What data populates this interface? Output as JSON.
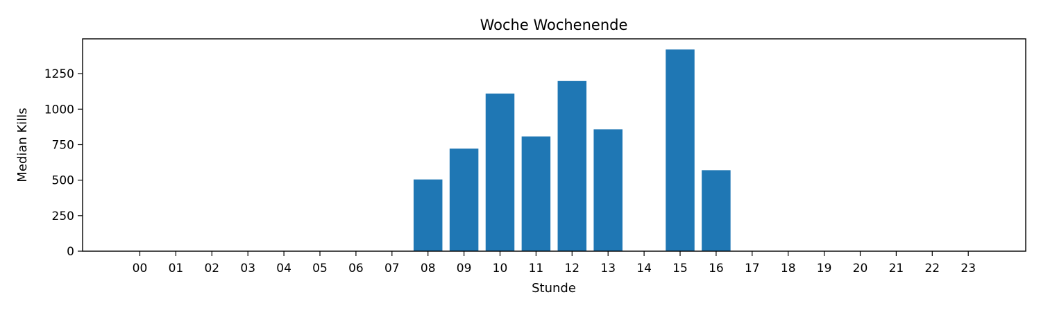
{
  "chart_data": {
    "type": "bar",
    "title": "Woche Wochenende",
    "xlabel": "Stunde",
    "ylabel": "Median Kills",
    "categories": [
      "00",
      "01",
      "02",
      "03",
      "04",
      "05",
      "06",
      "07",
      "08",
      "09",
      "10",
      "11",
      "12",
      "13",
      "14",
      "15",
      "16",
      "17",
      "18",
      "19",
      "20",
      "21",
      "22",
      "23"
    ],
    "values": [
      0,
      0,
      0,
      0,
      0,
      0,
      0,
      0,
      505,
      722,
      1110,
      808,
      1198,
      858,
      0,
      1420,
      570,
      0,
      0,
      0,
      0,
      0,
      0,
      0
    ],
    "ylim": [
      0,
      1495
    ],
    "yticks": [
      "0",
      "250",
      "500",
      "750",
      "1000",
      "1250"
    ],
    "grid": false,
    "legend": "none",
    "bar_color": "#1f77b4"
  }
}
